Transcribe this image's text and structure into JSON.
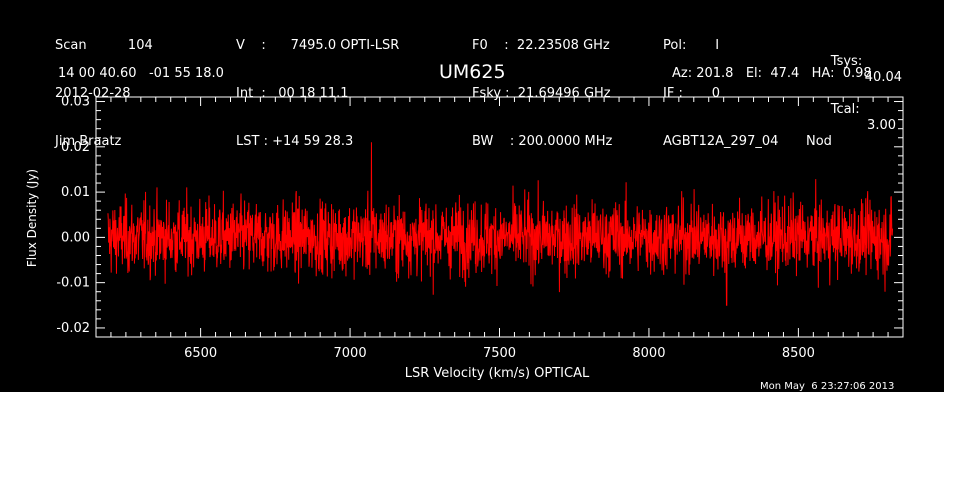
{
  "header": {
    "col1": [
      "Scan          104",
      "2012-02-28",
      "Jim Braatz"
    ],
    "col2": [
      "V    :      7495.0 OPTI-LSR",
      "Int  :   00 18 11.1",
      "LST : +14 59 28.3"
    ],
    "col3": [
      "F0    :  22.23508 GHz",
      "Fsky :  21.69496 GHz",
      "BW    : 200.0000 MHz"
    ],
    "col4": [
      "Pol:       I",
      "IF :       0",
      "AGBT12A_297_04"
    ],
    "col5": [
      "Tsys:",
      "Tcal:",
      "Nod"
    ],
    "col5_values": [
      "40.04",
      "3.00",
      ""
    ],
    "coords": "14 00 40.60   -01 55 18.0",
    "source": "UM625",
    "azel": "Az: 201.8   El:  47.4   HA:  0.98",
    "timestamp": "Mon May  6 23:27:06 2013"
  },
  "chart_data": {
    "type": "line",
    "xlabel": "LSR Velocity (km/s) OPTICAL",
    "ylabel": "Flux Density (Jy)",
    "xlim": [
      6150,
      8850
    ],
    "ylim": [
      -0.022,
      0.031
    ],
    "xticks": [
      6500,
      7000,
      7500,
      8000,
      8500
    ],
    "xtick_labels": [
      "6500",
      "7000",
      "7500",
      "8000",
      "8500"
    ],
    "yticks": [
      -0.02,
      -0.01,
      0.0,
      0.01,
      0.02,
      0.03
    ],
    "ytick_labels": [
      "-0.02",
      "-0.01",
      "0.00",
      "0.01",
      "0.02",
      "0.03"
    ],
    "line_color": "#ff0000",
    "axis_color": "#ffffff",
    "background": "#000000",
    "series": [
      {
        "x_range": [
          6190,
          8815
        ],
        "noise_rms": 0.004,
        "points": [
          {
            "x": 6190,
            "y": 0.0
          },
          {
            "x": 6300,
            "y": 0.0
          },
          {
            "x": 6500,
            "y": 0.0
          },
          {
            "x": 6700,
            "y": 0.0
          },
          {
            "x": 6900,
            "y": 0.0
          },
          {
            "x": 7000,
            "y": 0.0
          },
          {
            "x": 7072,
            "y": 0.021
          },
          {
            "x": 7200,
            "y": 0.0
          },
          {
            "x": 7500,
            "y": 0.0
          },
          {
            "x": 7800,
            "y": 0.0
          },
          {
            "x": 8000,
            "y": 0.0
          },
          {
            "x": 8260,
            "y": -0.015
          },
          {
            "x": 8500,
            "y": 0.0
          },
          {
            "x": 8790,
            "y": -0.012
          },
          {
            "x": 8815,
            "y": 0.0
          }
        ]
      }
    ]
  }
}
